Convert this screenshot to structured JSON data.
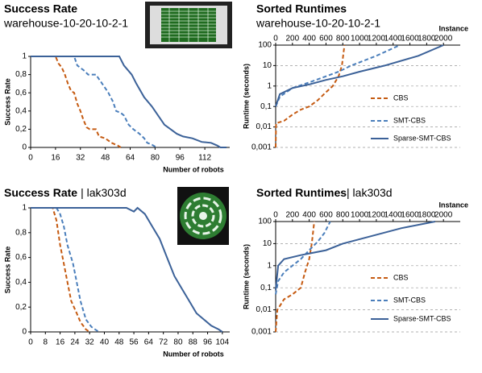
{
  "chart_data": [
    {
      "type": "line",
      "title": "Success Rate",
      "subtitle": "warehouse-10-20-10-2-1",
      "xlabel": "Number of robots",
      "ylabel": "Success Rate",
      "xlim": [
        0,
        128
      ],
      "xticks": [
        0,
        16,
        32,
        48,
        64,
        80,
        96,
        112
      ],
      "ylim": [
        0,
        1
      ],
      "yticks": [
        0,
        {
          "value": 0.2,
          "label": "0,2"
        },
        {
          "value": 0.4,
          "label": "0,4"
        },
        {
          "value": 0.6,
          "label": "0,6"
        },
        {
          "value": 0.8,
          "label": "0,8"
        },
        1
      ],
      "grid": false,
      "series": [
        {
          "color": "#c55a11",
          "dash": true,
          "x": [
            0,
            16,
            18,
            20,
            22,
            24,
            26,
            28,
            30,
            32,
            34,
            36,
            38,
            42,
            44,
            48,
            52,
            56,
            58
          ],
          "values": [
            1,
            1,
            0.92,
            0.88,
            0.8,
            0.7,
            0.62,
            0.6,
            0.48,
            0.4,
            0.3,
            0.22,
            0.2,
            0.2,
            0.12,
            0.1,
            0.05,
            0.02,
            0
          ]
        },
        {
          "color": "#4a7ebb",
          "dash": true,
          "x": [
            0,
            28,
            30,
            34,
            37,
            42,
            46,
            50,
            53,
            55,
            58,
            60,
            63,
            66,
            70,
            73,
            75,
            78,
            81
          ],
          "values": [
            1,
            1,
            0.9,
            0.85,
            0.8,
            0.8,
            0.7,
            0.6,
            0.5,
            0.4,
            0.38,
            0.35,
            0.25,
            0.2,
            0.15,
            0.1,
            0.05,
            0.03,
            0
          ]
        },
        {
          "color": "#3b6198",
          "dash": false,
          "x": [
            0,
            57,
            60,
            65,
            68,
            73,
            78,
            82,
            86,
            90,
            94,
            98,
            104,
            110,
            116,
            120,
            122,
            126
          ],
          "values": [
            1,
            1,
            0.9,
            0.8,
            0.7,
            0.55,
            0.45,
            0.35,
            0.25,
            0.2,
            0.15,
            0.12,
            0.1,
            0.06,
            0.05,
            0.02,
            0,
            0
          ]
        }
      ]
    },
    {
      "type": "line",
      "title": "Sorted Runtimes",
      "subtitle": "warehouse-10-20-10-2-1",
      "xlabel": "Instance",
      "ylabel": "Runtime (seconds)",
      "xlim": [
        0,
        2200
      ],
      "xticks": [
        0,
        200,
        400,
        600,
        800,
        1000,
        1200,
        1400,
        1600,
        1800,
        2000
      ],
      "log_y": true,
      "ylim": [
        0.001,
        100
      ],
      "yticks": [
        {
          "value": 0.001,
          "label": "0,001"
        },
        {
          "value": 0.01,
          "label": "0,01"
        },
        {
          "value": 0.1,
          "label": "0,1"
        },
        1,
        10,
        100
      ],
      "grid": true,
      "legend": "right",
      "x_axis": "top",
      "series": [
        {
          "name": "CBS",
          "color": "#c55a11",
          "dash": true,
          "x": [
            0,
            5,
            100,
            200,
            300,
            400,
            500,
            600,
            680,
            750,
            790,
            820
          ],
          "values": [
            0.001,
            0.015,
            0.02,
            0.04,
            0.07,
            0.1,
            0.2,
            0.5,
            1,
            3,
            10,
            100
          ]
        },
        {
          "name": "SMT-CBS",
          "color": "#4a7ebb",
          "dash": true,
          "x": [
            0,
            50,
            200,
            400,
            600,
            750,
            900,
            1200,
            1480
          ],
          "values": [
            0.1,
            0.3,
            0.8,
            1.5,
            3,
            5,
            10,
            30,
            100
          ]
        },
        {
          "name": "Sparse-SMT-CBS",
          "color": "#3b6198",
          "dash": false,
          "x": [
            0,
            50,
            200,
            400,
            600,
            800,
            1000,
            1300,
            1700,
            2000
          ],
          "values": [
            0.1,
            0.4,
            0.8,
            1.2,
            2,
            3,
            5,
            10,
            30,
            100
          ]
        }
      ]
    },
    {
      "type": "line",
      "title": "Success Rate",
      "subtitle": "| lak303d",
      "xlabel": "Number of robots",
      "ylabel": "Success Rate",
      "xlim": [
        0,
        108
      ],
      "xticks": [
        0,
        8,
        16,
        24,
        32,
        40,
        48,
        56,
        64,
        72,
        80,
        88,
        96,
        104
      ],
      "ylim": [
        0,
        1
      ],
      "yticks": [
        0,
        {
          "value": 0.2,
          "label": "0,2"
        },
        {
          "value": 0.4,
          "label": "0,4"
        },
        {
          "value": 0.6,
          "label": "0,6"
        },
        {
          "value": 0.8,
          "label": "0,8"
        },
        1
      ],
      "grid": false,
      "series": [
        {
          "color": "#c55a11",
          "dash": true,
          "x": [
            0,
            12,
            14,
            16,
            18,
            20,
            22,
            25,
            27,
            30,
            32
          ],
          "values": [
            1,
            1,
            0.9,
            0.7,
            0.55,
            0.4,
            0.25,
            0.15,
            0.08,
            0.02,
            0
          ]
        },
        {
          "color": "#4a7ebb",
          "dash": true,
          "x": [
            0,
            14,
            16,
            18,
            20,
            23,
            25,
            27,
            30,
            33,
            37
          ],
          "values": [
            1,
            1,
            0.95,
            0.85,
            0.7,
            0.55,
            0.4,
            0.25,
            0.1,
            0.04,
            0
          ]
        },
        {
          "color": "#3b6198",
          "dash": false,
          "x": [
            0,
            52,
            56,
            58,
            62,
            66,
            70,
            74,
            78,
            82,
            86,
            90,
            94,
            98,
            102,
            104
          ],
          "values": [
            1,
            1,
            0.97,
            1,
            0.95,
            0.85,
            0.75,
            0.6,
            0.45,
            0.35,
            0.25,
            0.15,
            0.1,
            0.05,
            0.02,
            0
          ]
        }
      ]
    },
    {
      "type": "line",
      "title": "Sorted Runtimes",
      "subtitle": "| lak303d",
      "xlabel": "Instance",
      "ylabel": "Runtime (seconds)",
      "xlim": [
        0,
        2200
      ],
      "xticks": [
        0,
        200,
        400,
        600,
        800,
        1000,
        1200,
        1400,
        1600,
        1800,
        2000
      ],
      "log_y": true,
      "ylim": [
        0.001,
        100
      ],
      "yticks": [
        {
          "value": 0.001,
          "label": "0,001"
        },
        {
          "value": 0.01,
          "label": "0,01"
        },
        {
          "value": 0.1,
          "label": "0,1"
        },
        1,
        10,
        100
      ],
      "grid": true,
      "legend": "right",
      "x_axis": "top",
      "series": [
        {
          "name": "CBS",
          "color": "#c55a11",
          "dash": true,
          "x": [
            0,
            20,
            100,
            200,
            300,
            350,
            400,
            430,
            460
          ],
          "values": [
            0.001,
            0.01,
            0.03,
            0.05,
            0.1,
            0.5,
            2,
            10,
            100
          ]
        },
        {
          "name": "SMT-CBS",
          "color": "#4a7ebb",
          "dash": true,
          "x": [
            0,
            30,
            100,
            200,
            300,
            400,
            500,
            580,
            650
          ],
          "values": [
            0.05,
            0.2,
            0.5,
            1,
            2,
            5,
            12,
            30,
            100
          ]
        },
        {
          "name": "Sparse-SMT-CBS",
          "color": "#3b6198",
          "dash": false,
          "x": [
            0,
            30,
            100,
            300,
            600,
            800,
            1100,
            1500,
            1900
          ],
          "values": [
            0.08,
            1,
            2,
            3,
            5,
            10,
            20,
            50,
            100
          ]
        }
      ]
    }
  ]
}
